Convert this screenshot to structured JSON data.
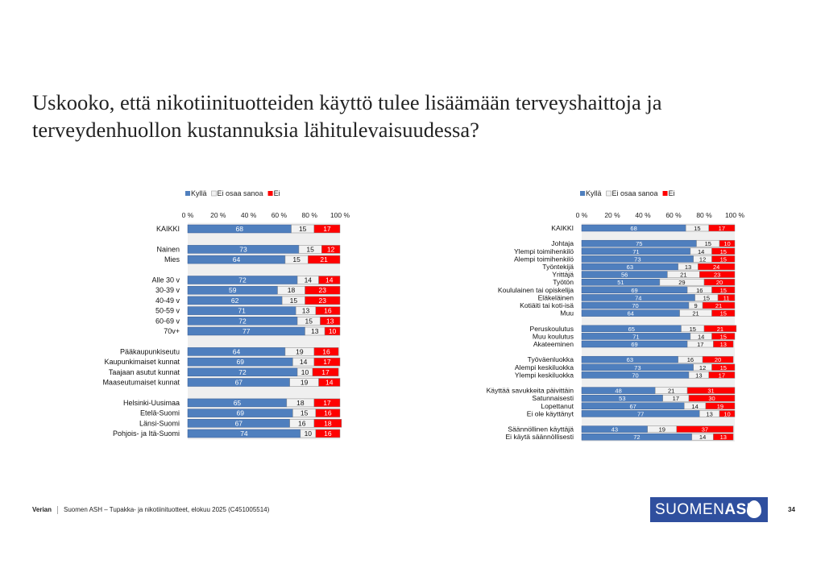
{
  "title": "Uskooko, että nikotiinituotteiden käyttö tulee lisäämään terveyshaittoja ja terveydenhuollon kustannuksia lähitulevaisuudessa?",
  "footer": {
    "brand": "Verian",
    "text": "Suomen ASH – Tupakka- ja nikotiinituotteet, elokuu 2025 (C451005514)",
    "logo": "SUOMENASH",
    "page": "34"
  },
  "colors": {
    "Kyllä": "#4f7fbe",
    "Ei osaa sanoa": "#f2f2f2",
    "Ei": "#ff0000",
    "plot_bg": "#efefef"
  },
  "chart_data": [
    {
      "type": "bar",
      "orientation": "horizontal-stacked-100",
      "legend": [
        "Kyllä",
        "Ei osaa sanoa",
        "Ei"
      ],
      "legend_position": "top",
      "xticks": [
        "0 %",
        "20 %",
        "40 %",
        "60 %",
        "80 %",
        "100 %"
      ],
      "xlim": [
        0,
        100
      ],
      "categories": [
        "KAIKKI",
        "",
        "Nainen",
        "Mies",
        "",
        "Alle 30 v",
        "30-39 v",
        "40-49 v",
        "50-59 v",
        "60-69 v",
        "70v+",
        "",
        "Pääkaupunkiseutu",
        "Kaupunkimaiset kunnat",
        "Taajaan asutut kunnat",
        "Maaseutumaiset kunnat",
        "",
        "Helsinki-Uusimaa",
        "Etelä-Suomi",
        "Länsi-Suomi",
        "Pohjois- ja Itä-Suomi"
      ],
      "series": [
        {
          "name": "Kyllä",
          "values": [
            68,
            null,
            73,
            64,
            null,
            72,
            59,
            62,
            71,
            72,
            77,
            null,
            64,
            69,
            72,
            67,
            null,
            65,
            69,
            67,
            74
          ]
        },
        {
          "name": "Ei osaa sanoa",
          "values": [
            15,
            null,
            15,
            15,
            null,
            14,
            18,
            15,
            13,
            15,
            13,
            null,
            19,
            14,
            10,
            19,
            null,
            18,
            15,
            16,
            10
          ]
        },
        {
          "name": "Ei",
          "values": [
            17,
            null,
            12,
            21,
            null,
            14,
            23,
            23,
            16,
            13,
            10,
            null,
            16,
            17,
            17,
            14,
            null,
            17,
            16,
            18,
            16
          ]
        }
      ]
    },
    {
      "type": "bar",
      "orientation": "horizontal-stacked-100",
      "legend": [
        "Kyllä",
        "Ei osaa sanoa",
        "Ei"
      ],
      "legend_position": "top",
      "xticks": [
        "0 %",
        "20 %",
        "40 %",
        "60 %",
        "80 %",
        "100 %"
      ],
      "xlim": [
        0,
        100
      ],
      "categories": [
        "KAIKKI",
        "",
        "Johtaja",
        "Ylempi toimihenkilö",
        "Alempi toimihenkilö",
        "Työntekijä",
        "Yrittäjä",
        "Työtön",
        "Koululainen tai opiskelija",
        "Eläkeläinen",
        "Kotiäiti tai koti-isä",
        "Muu",
        "",
        "Peruskoulutus",
        "Muu koulutus",
        "Akateeminen",
        "",
        "Työväenluokka",
        "Alempi keskiluokka",
        "Ylempi keskiluokka",
        "",
        "Käyttää savukkeita päivittäin",
        "Satunnaisesti",
        "Lopettanut",
        "Ei ole käyttänyt",
        "",
        "Säännöllinen käyttäjä",
        "Ei käytä säännöllisesti"
      ],
      "series": [
        {
          "name": "Kyllä",
          "values": [
            68,
            null,
            75,
            71,
            73,
            63,
            56,
            51,
            69,
            74,
            70,
            64,
            null,
            65,
            71,
            69,
            null,
            63,
            73,
            70,
            null,
            48,
            53,
            67,
            77,
            null,
            43,
            72
          ]
        },
        {
          "name": "Ei osaa sanoa",
          "values": [
            15,
            null,
            15,
            14,
            12,
            13,
            21,
            29,
            16,
            15,
            9,
            21,
            null,
            15,
            14,
            17,
            null,
            16,
            12,
            13,
            null,
            21,
            17,
            14,
            13,
            null,
            19,
            14
          ]
        },
        {
          "name": "Ei",
          "values": [
            17,
            null,
            10,
            15,
            15,
            24,
            23,
            20,
            15,
            11,
            21,
            15,
            null,
            21,
            15,
            13,
            null,
            20,
            15,
            17,
            null,
            31,
            30,
            19,
            10,
            null,
            37,
            13
          ]
        }
      ]
    }
  ]
}
